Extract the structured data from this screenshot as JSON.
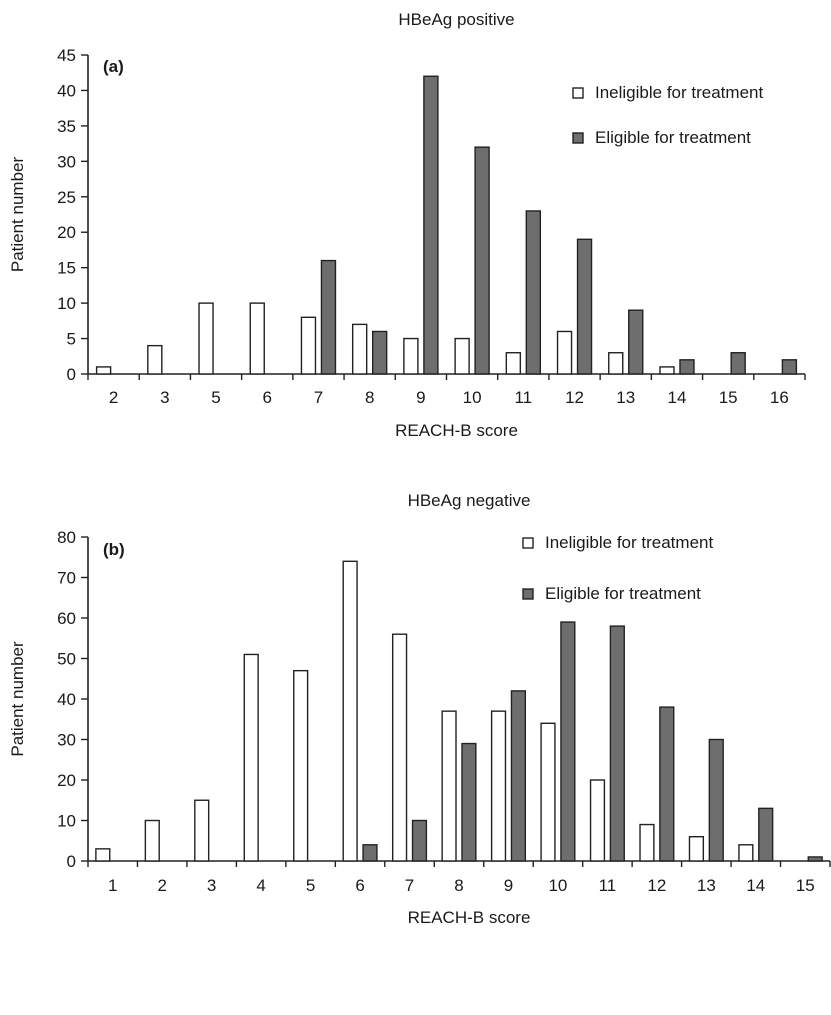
{
  "chart_data": [
    {
      "type": "bar",
      "panel_label": "(a)",
      "title": "HBeAg positive",
      "xlabel": "REACH-B score",
      "ylabel": "Patient number",
      "ylim": [
        0,
        45
      ],
      "yticks": [
        0,
        5,
        10,
        15,
        20,
        25,
        30,
        35,
        40,
        45
      ],
      "categories": [
        "2",
        "3",
        "5",
        "6",
        "7",
        "8",
        "9",
        "10",
        "11",
        "12",
        "13",
        "14",
        "15",
        "16"
      ],
      "series": [
        {
          "name": "Ineligible for treatment",
          "color": "#ffffff",
          "values": [
            1,
            4,
            10,
            10,
            8,
            7,
            5,
            5,
            3,
            6,
            3,
            1,
            0,
            0
          ]
        },
        {
          "name": "Eligible for treatment",
          "color": "#6e6e6e",
          "values": [
            0,
            0,
            0,
            0,
            16,
            6,
            42,
            32,
            23,
            19,
            9,
            2,
            3,
            2
          ]
        }
      ],
      "legend": "top-right",
      "grid": false
    },
    {
      "type": "bar",
      "panel_label": "(b)",
      "title": "HBeAg negative",
      "xlabel": "REACH-B score",
      "ylabel": "Patient number",
      "ylim": [
        0,
        80
      ],
      "yticks": [
        0,
        10,
        20,
        30,
        40,
        50,
        60,
        70,
        80
      ],
      "categories": [
        "1",
        "2",
        "3",
        "4",
        "5",
        "6",
        "7",
        "8",
        "9",
        "10",
        "11",
        "12",
        "13",
        "14",
        "15"
      ],
      "series": [
        {
          "name": "Ineligible for treatment",
          "color": "#ffffff",
          "values": [
            3,
            10,
            15,
            51,
            47,
            74,
            56,
            37,
            37,
            34,
            20,
            9,
            6,
            4,
            0
          ]
        },
        {
          "name": "Eligible for treatment",
          "color": "#6e6e6e",
          "values": [
            0,
            0,
            0,
            0,
            0,
            4,
            10,
            29,
            42,
            59,
            58,
            38,
            30,
            13,
            1
          ]
        }
      ],
      "legend": "top-right",
      "grid": false
    }
  ]
}
